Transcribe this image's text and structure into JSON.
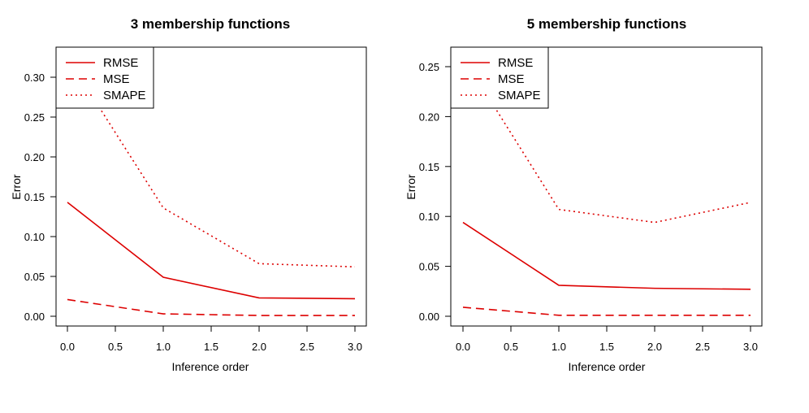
{
  "chart_data": [
    {
      "type": "line",
      "title": "3 membership functions",
      "xlabel": "Inference order",
      "ylabel": "Error",
      "x": [
        0,
        1,
        2,
        3
      ],
      "xlim": [
        0,
        3
      ],
      "ylim": [
        0,
        0.3
      ],
      "xticks": [
        "0.0",
        "0.5",
        "1.0",
        "1.5",
        "2.0",
        "2.5",
        "3.0"
      ],
      "yticks": [
        "0.00",
        "0.05",
        "0.10",
        "0.15",
        "0.20",
        "0.25",
        "0.30"
      ],
      "legend_position": "top-left",
      "grid": false,
      "series": [
        {
          "name": "RMSE",
          "values": [
            0.143,
            0.049,
            0.023,
            0.022
          ],
          "style": "solid",
          "color": "#dd0000"
        },
        {
          "name": "MSE",
          "values": [
            0.021,
            0.003,
            0.001,
            0.001
          ],
          "style": "dashed",
          "color": "#dd0000"
        },
        {
          "name": "SMAPE",
          "values": [
            0.325,
            0.136,
            0.066,
            0.062
          ],
          "style": "dotted",
          "color": "#dd0000"
        }
      ]
    },
    {
      "type": "line",
      "title": "5 membership functions",
      "xlabel": "Inference order",
      "ylabel": "Error",
      "x": [
        0,
        1,
        2,
        3
      ],
      "xlim": [
        0,
        3
      ],
      "ylim": [
        0,
        0.25
      ],
      "xticks": [
        "0.0",
        "0.5",
        "1.0",
        "1.5",
        "2.0",
        "2.5",
        "3.0"
      ],
      "yticks": [
        "0.00",
        "0.05",
        "0.10",
        "0.15",
        "0.20",
        "0.25"
      ],
      "legend_position": "top-left",
      "grid": false,
      "series": [
        {
          "name": "RMSE",
          "values": [
            0.094,
            0.031,
            0.028,
            0.027
          ],
          "style": "solid",
          "color": "#dd0000"
        },
        {
          "name": "MSE",
          "values": [
            0.009,
            0.001,
            0.001,
            0.001
          ],
          "style": "dashed",
          "color": "#dd0000"
        },
        {
          "name": "SMAPE",
          "values": [
            0.26,
            0.107,
            0.094,
            0.114
          ],
          "style": "dotted",
          "color": "#dd0000"
        }
      ]
    }
  ]
}
